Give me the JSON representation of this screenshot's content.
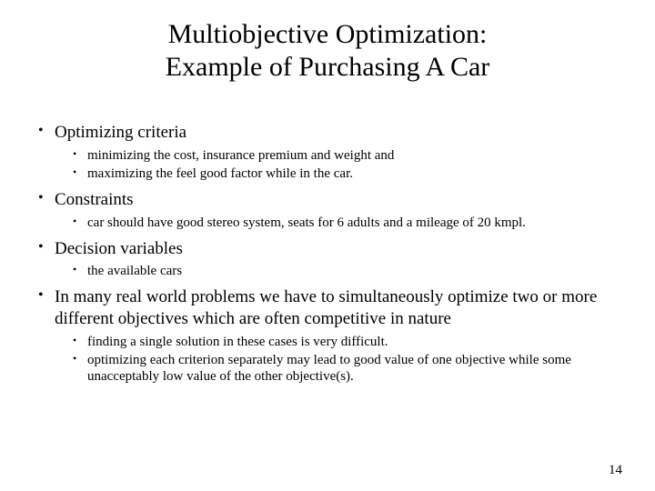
{
  "title_line1": "Multiobjective Optimization:",
  "title_line2": "Example of Purchasing A Car",
  "bullets": [
    {
      "text": "Optimizing criteria",
      "sub": [
        "minimizing the cost, insurance premium and weight and",
        "maximizing the feel good factor while in the car."
      ]
    },
    {
      "text": " Constraints",
      "sub": [
        " car should have good stereo system, seats for 6 adults and a mileage of 20 kmpl."
      ]
    },
    {
      "text": "Decision variables",
      "sub": [
        " the available cars"
      ]
    },
    {
      "text": "In many real world problems we have to simultaneously optimize two or more different objectives which are often competitive in nature",
      "sub": [
        "finding a single solution in these cases is very difficult.",
        "optimizing each criterion separately may lead to good value of one objective while some unacceptably low value of the other objective(s)."
      ]
    }
  ],
  "page_number": "14",
  "colors": {
    "background": "#ffffff",
    "text": "#000000"
  },
  "fonts": {
    "title_size_pt": 30,
    "lvl1_size_pt": 19,
    "lvl2_size_pt": 15,
    "family": "serif"
  }
}
